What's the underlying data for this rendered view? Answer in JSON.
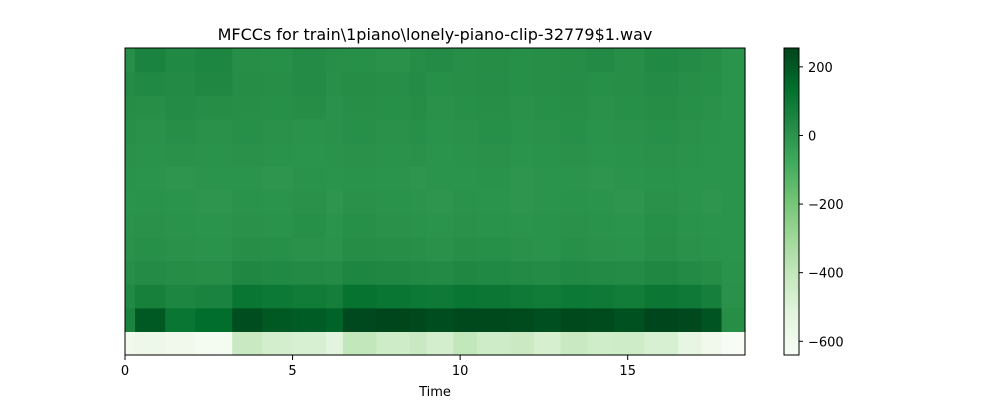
{
  "chart_data": {
    "type": "heatmap",
    "title": "MFCCs for train\\1piano\\lonely-piano-clip-32779$1.wav",
    "xlabel": "Time",
    "ylabel": "",
    "xlim": [
      0,
      18.5
    ],
    "xticks": [
      0,
      5,
      10,
      15
    ],
    "n_coefficients": 13,
    "colormap": "Greens",
    "colorbar": {
      "range": [
        -640,
        255
      ],
      "ticks": [
        200,
        0,
        -200,
        -400,
        -600
      ],
      "tick_labels": [
        "200",
        "0",
        "−200",
        "−400",
        "−600"
      ]
    },
    "time_segments": [
      0,
      0.3,
      1.2,
      2.1,
      3.2,
      4.1,
      5.0,
      6.0,
      6.5,
      7.5,
      8.5,
      9.0,
      9.8,
      10.5,
      11.5,
      12.2,
      13.0,
      13.8,
      14.6,
      15.5,
      16.5,
      17.2,
      17.8,
      18.5
    ],
    "rows": [
      {
        "coef": 0,
        "values": [
          -600,
          -580,
          -600,
          -620,
          -420,
          -460,
          -480,
          -520,
          -400,
          -440,
          -420,
          -460,
          -400,
          -440,
          -430,
          -470,
          -420,
          -450,
          -440,
          -480,
          -540,
          -600,
          -640
        ]
      },
      {
        "coef": 1,
        "values": [
          60,
          200,
          110,
          140,
          230,
          200,
          190,
          170,
          245,
          250,
          240,
          230,
          245,
          240,
          235,
          225,
          240,
          235,
          220,
          250,
          245,
          210,
          20
        ]
      },
      {
        "coef": 2,
        "values": [
          40,
          70,
          50,
          60,
          110,
          100,
          90,
          80,
          120,
          110,
          100,
          95,
          110,
          105,
          95,
          90,
          100,
          95,
          85,
          105,
          95,
          75,
          10
        ]
      },
      {
        "coef": 3,
        "values": [
          20,
          30,
          25,
          20,
          45,
          40,
          35,
          30,
          50,
          45,
          40,
          35,
          45,
          40,
          35,
          30,
          40,
          35,
          30,
          45,
          35,
          25,
          5
        ]
      },
      {
        "coef": 4,
        "values": [
          10,
          15,
          10,
          5,
          20,
          15,
          10,
          5,
          25,
          20,
          15,
          10,
          20,
          15,
          10,
          5,
          15,
          10,
          5,
          20,
          10,
          5,
          0
        ]
      },
      {
        "coef": 5,
        "values": [
          5,
          10,
          5,
          0,
          10,
          5,
          15,
          0,
          15,
          10,
          5,
          0,
          10,
          5,
          0,
          5,
          10,
          5,
          0,
          15,
          5,
          0,
          0
        ]
      },
      {
        "coef": 6,
        "values": [
          0,
          5,
          0,
          -5,
          5,
          0,
          10,
          -5,
          10,
          5,
          0,
          -5,
          5,
          0,
          -5,
          0,
          5,
          0,
          -5,
          10,
          0,
          -5,
          0
        ]
      },
      {
        "coef": 7,
        "values": [
          5,
          0,
          -5,
          0,
          0,
          -5,
          5,
          0,
          5,
          0,
          -5,
          0,
          0,
          5,
          -5,
          0,
          0,
          -5,
          0,
          5,
          0,
          0,
          0
        ]
      },
      {
        "coef": 8,
        "values": [
          10,
          5,
          10,
          5,
          10,
          5,
          0,
          5,
          10,
          5,
          10,
          0,
          5,
          10,
          0,
          5,
          10,
          0,
          5,
          10,
          5,
          0,
          0
        ]
      },
      {
        "coef": 9,
        "values": [
          15,
          10,
          20,
          10,
          15,
          10,
          5,
          10,
          15,
          10,
          15,
          5,
          10,
          15,
          5,
          10,
          15,
          5,
          10,
          15,
          10,
          5,
          0
        ]
      },
      {
        "coef": 10,
        "values": [
          25,
          20,
          30,
          25,
          20,
          15,
          25,
          10,
          20,
          15,
          25,
          10,
          15,
          20,
          10,
          15,
          20,
          10,
          15,
          25,
          15,
          10,
          0
        ]
      },
      {
        "coef": 11,
        "values": [
          30,
          40,
          35,
          45,
          25,
          20,
          30,
          15,
          25,
          20,
          30,
          15,
          20,
          25,
          15,
          20,
          25,
          15,
          20,
          30,
          20,
          15,
          0
        ]
      },
      {
        "coef": 12,
        "values": [
          20,
          60,
          40,
          50,
          20,
          15,
          30,
          20,
          15,
          10,
          25,
          30,
          20,
          25,
          15,
          20,
          25,
          35,
          20,
          40,
          30,
          20,
          0
        ]
      }
    ]
  }
}
